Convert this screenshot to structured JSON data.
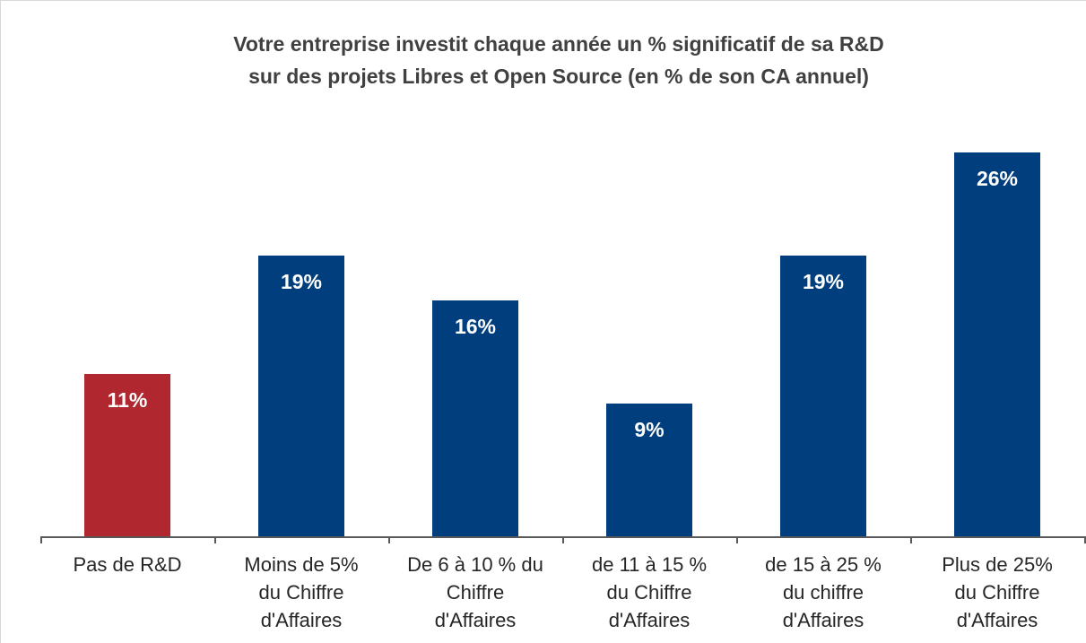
{
  "chart_data": {
    "type": "bar",
    "title": "Votre entreprise investit chaque année un % significatif de sa R&D\nsur des projets Libres et Open Source (en % de son CA annuel)",
    "categories": [
      "Pas de R&D",
      "Moins de 5%\ndu Chiffre\nd'Affaires",
      "De 6 à 10 % du\nChiffre\nd'Affaires",
      "de 11 à 15 %\ndu Chiffre\nd'Affaires",
      "de 15 à 25 %\ndu chiffre\nd'Affaires",
      "Plus de 25%\ndu Chiffre\nd'Affaires"
    ],
    "values": [
      11,
      19,
      16,
      9,
      19,
      26
    ],
    "value_labels": [
      "11%",
      "19%",
      "16%",
      "9%",
      "19%",
      "26%"
    ],
    "colors": [
      "#b0272f",
      "#003e7e",
      "#003e7e",
      "#003e7e",
      "#003e7e",
      "#003e7e"
    ]
  }
}
